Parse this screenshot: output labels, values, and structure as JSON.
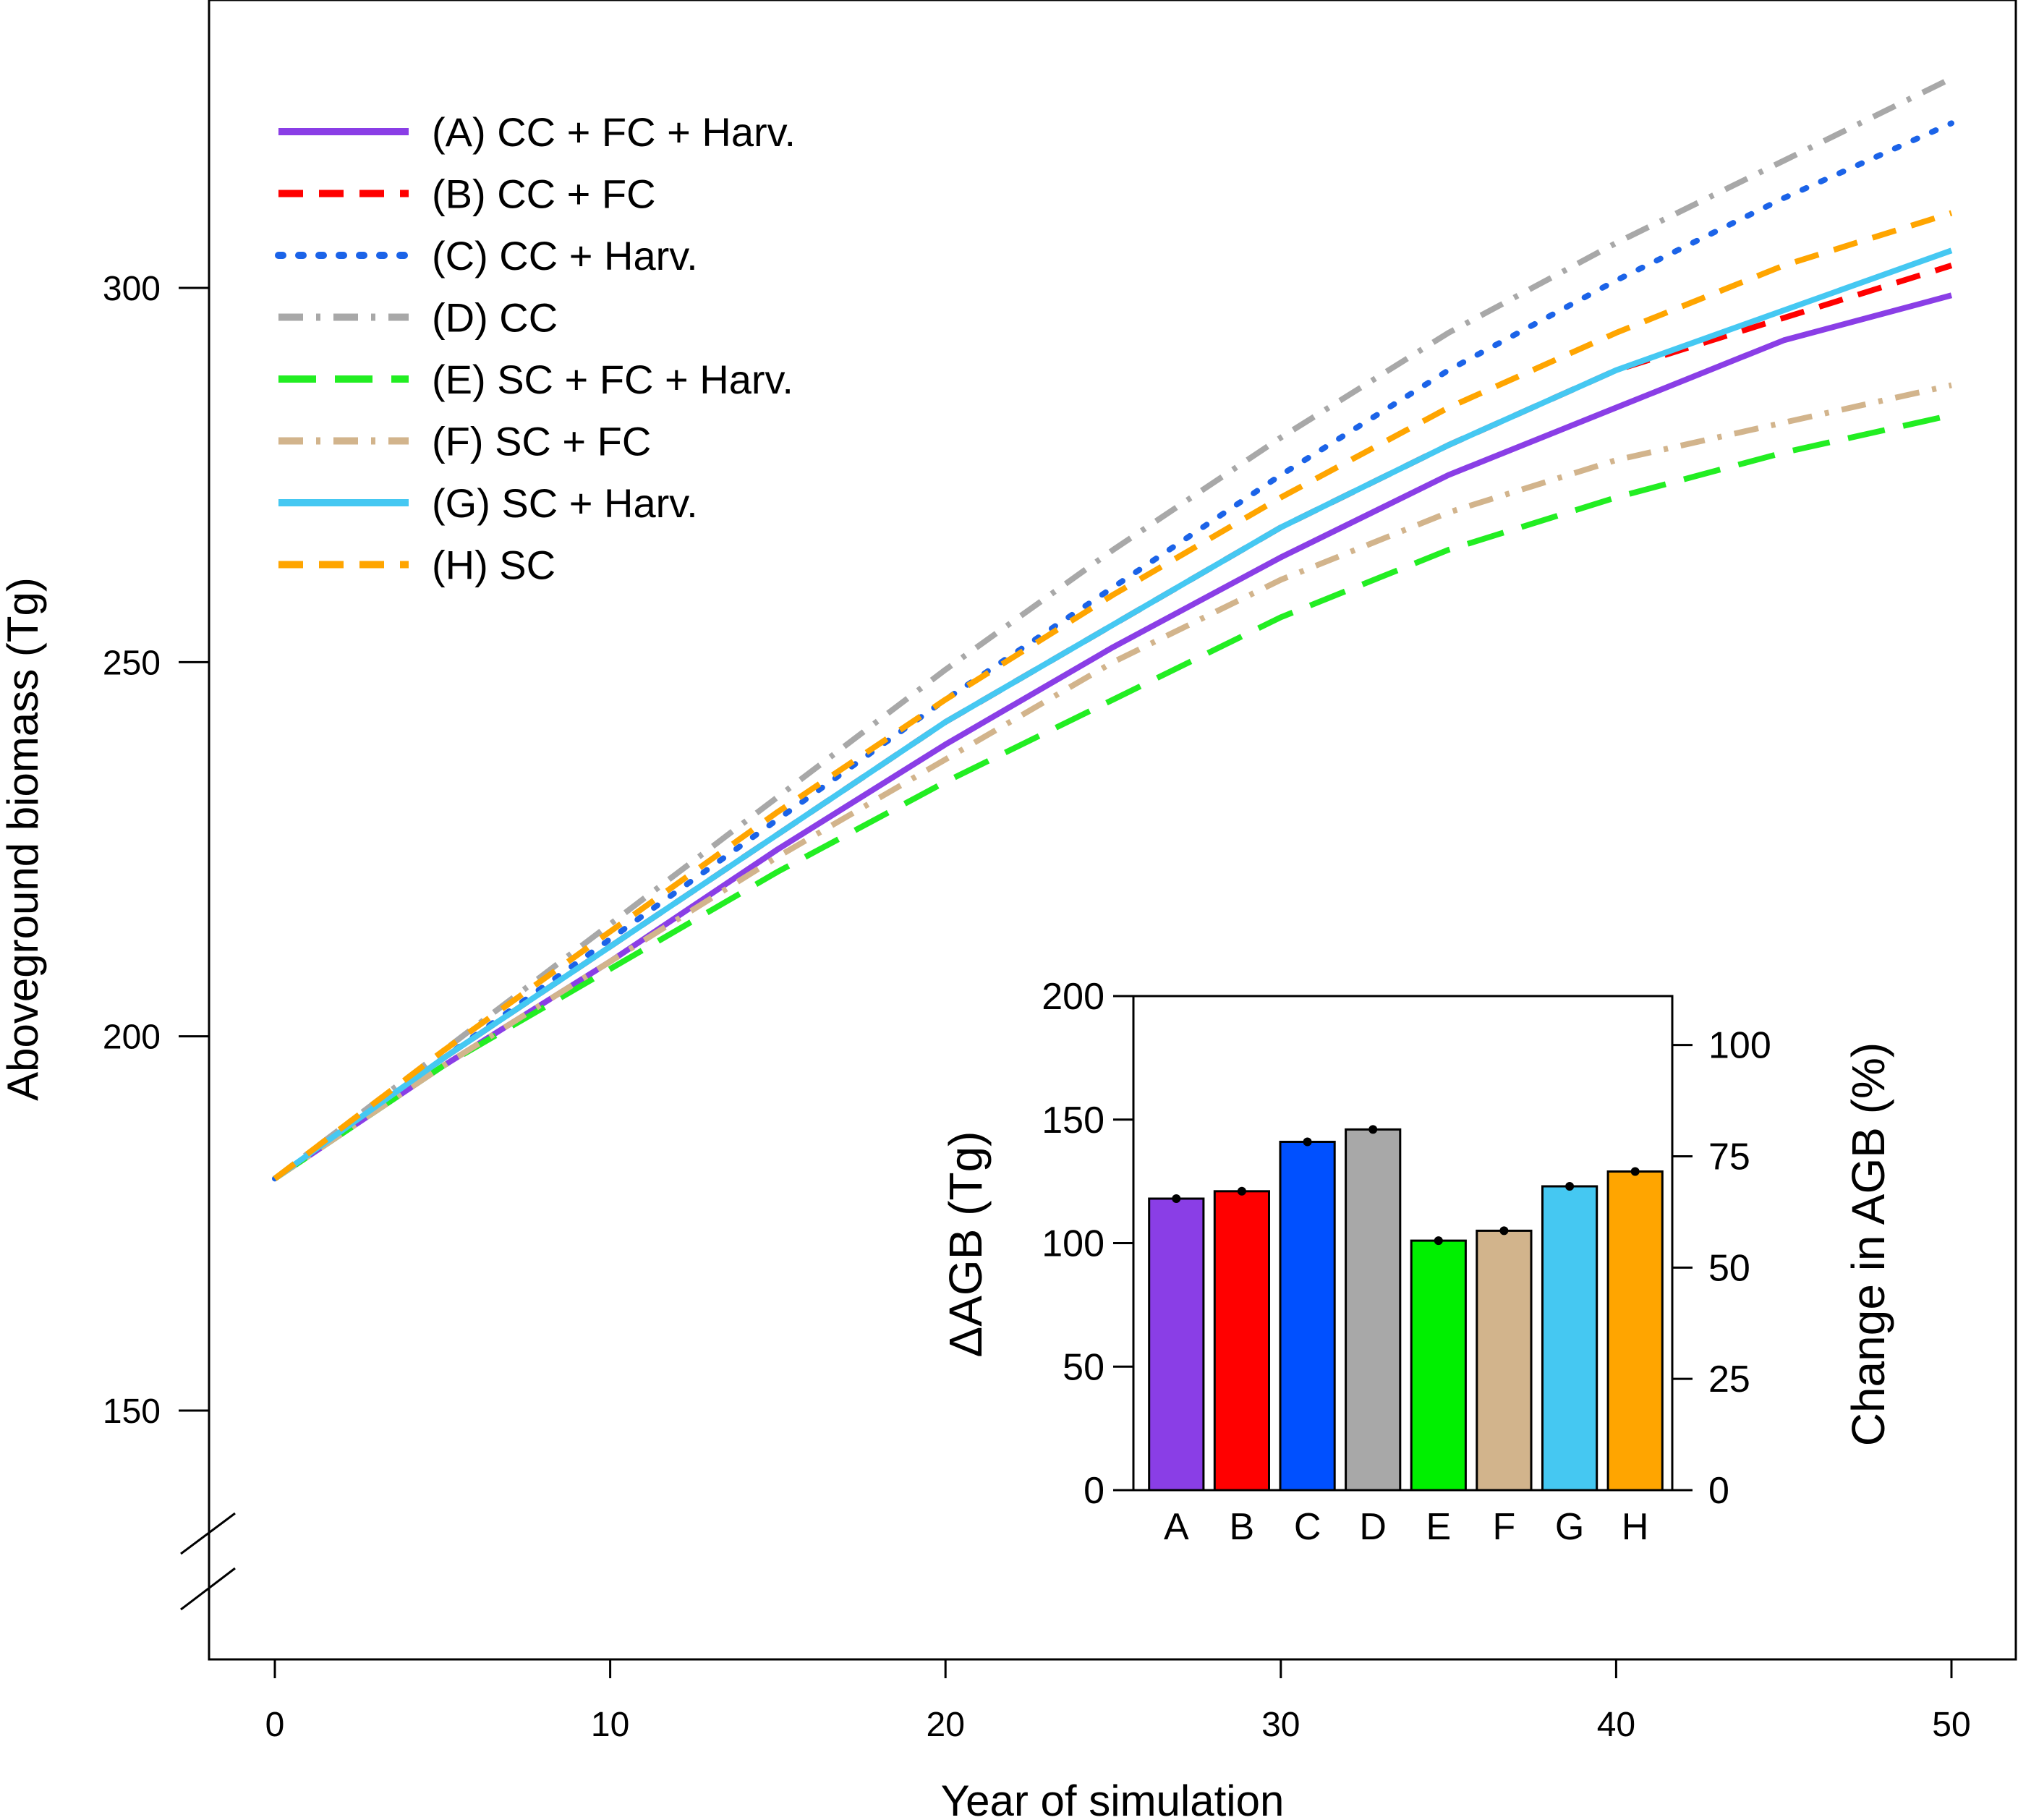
{
  "chart_data": [
    {
      "type": "line",
      "xlabel": "Year of simulation",
      "ylabel": "Aboveground biomass (Tg)",
      "xlim": [
        0,
        50
      ],
      "ylim": [
        150,
        300
      ],
      "axis_break": "y-axis below 150",
      "x_ticks": [
        "0",
        "10",
        "20",
        "30",
        "40",
        "50"
      ],
      "y_ticks": [
        "150",
        "200",
        "250",
        "300"
      ],
      "legend_position": "top-left",
      "x": [
        0,
        5,
        10,
        15,
        20,
        25,
        30,
        35,
        40,
        45,
        50
      ],
      "series": [
        {
          "name": "(A) CC + FC + Harv.",
          "color": "#8a3ee6",
          "style": "solid",
          "values": [
            181,
            196,
            210,
            225,
            239,
            252,
            264,
            275,
            284,
            293,
            299
          ]
        },
        {
          "name": "(B) CC + FC",
          "color": "#ff0000",
          "style": "dashed",
          "values": [
            181,
            197,
            212,
            227,
            242,
            255,
            268,
            279,
            289,
            296,
            303
          ]
        },
        {
          "name": "(C) CC + Harv.",
          "color": "#1b63e8",
          "style": "dotted",
          "values": [
            181,
            197,
            213,
            229,
            245,
            260,
            275,
            289,
            301,
            312,
            322
          ]
        },
        {
          "name": "(D) CC",
          "color": "#a8a8a8",
          "style": "dotdash",
          "values": [
            181,
            198,
            215,
            232,
            249,
            265,
            280,
            294,
            306,
            317,
            328
          ]
        },
        {
          "name": "(E) SC + FC + Harv.",
          "color": "#22ee22",
          "style": "longdash",
          "values": [
            181,
            196,
            209,
            222,
            234,
            245,
            256,
            265,
            272,
            278,
            283
          ]
        },
        {
          "name": "(F) SC + FC",
          "color": "#d2b48c",
          "style": "dotdash",
          "values": [
            181,
            196,
            210,
            224,
            237,
            250,
            261,
            270,
            277,
            282,
            287
          ]
        },
        {
          "name": "(G) SC + Harv.",
          "color": "#45c8f2",
          "style": "solid",
          "values": [
            181,
            197,
            212,
            227,
            242,
            255,
            268,
            279,
            289,
            297,
            305
          ]
        },
        {
          "name": "(H) SC",
          "color": "#ffa500",
          "style": "dashed",
          "values": [
            181,
            198,
            214,
            230,
            245,
            259,
            272,
            284,
            294,
            303,
            310
          ]
        }
      ]
    },
    {
      "type": "bar",
      "categories": [
        "A",
        "B",
        "C",
        "D",
        "E",
        "F",
        "G",
        "H"
      ],
      "values": [
        118,
        121,
        141,
        146,
        101,
        105,
        123,
        129
      ],
      "colors": [
        "#8a3ee6",
        "#ff0000",
        "#0050ff",
        "#a8a8a8",
        "#00f000",
        "#d2b48c",
        "#45c8f2",
        "#ffa500"
      ],
      "ylabel": "ΔAGB (Tg)",
      "y2label": "Change in AGB (%)",
      "ylim": [
        0,
        200
      ],
      "y2lim": [
        0,
        111
      ],
      "y_ticks": [
        "0",
        "50",
        "100",
        "150",
        "200"
      ],
      "y2_ticks": [
        "0",
        "25",
        "50",
        "75",
        "100"
      ],
      "y2_tick_values": [
        0,
        25,
        50,
        75,
        100
      ]
    }
  ]
}
